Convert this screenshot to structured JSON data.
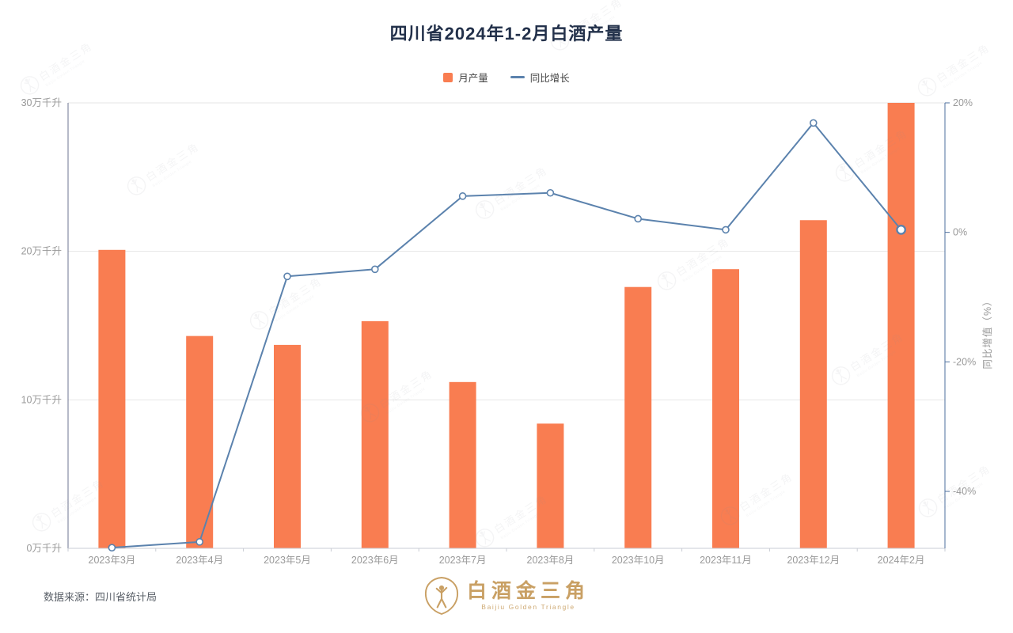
{
  "chart_data": {
    "type": "bar",
    "combo": "bar-line-dual-axis",
    "title": "四川省2024年1-2月白酒产量",
    "categories": [
      "2023年3月",
      "2023年4月",
      "2023年5月",
      "2023年6月",
      "2023年7月",
      "2023年8月",
      "2023年10月",
      "2023年11月",
      "2023年12月",
      "2024年2月"
    ],
    "series": [
      {
        "name": "月产量",
        "type": "bar",
        "axis": "left",
        "unit": "万千升",
        "color": "#f97d51",
        "values": [
          20.1,
          14.3,
          13.7,
          15.3,
          11.2,
          8.4,
          17.6,
          18.8,
          22.1,
          30.0
        ]
      },
      {
        "name": "同比增长",
        "type": "line",
        "axis": "right",
        "unit": "%",
        "color": "#5b82ad",
        "values": [
          -48.7,
          -47.8,
          -6.8,
          -5.7,
          5.6,
          6.1,
          2.1,
          0.4,
          16.9,
          0.4
        ]
      }
    ],
    "left_axis": {
      "min": 0,
      "max": 30,
      "ticks": [
        0,
        10,
        20,
        30
      ],
      "tick_labels": [
        "0万千升",
        "10万千升",
        "20万千升",
        "30万千升"
      ]
    },
    "right_axis": {
      "min": -48.8,
      "max": 20,
      "ticks": [
        20,
        0,
        -20,
        -40
      ],
      "tick_labels": [
        "20%",
        "0%",
        "-20%",
        "-40%"
      ],
      "name": "同比增值（%）"
    },
    "legend_position": "top-center",
    "grid": true
  },
  "footer": {
    "source": "数据来源：四川省统计局",
    "brand_name": "白酒金三角",
    "brand_name_en": "Baijiu Golden Triangle"
  },
  "watermark": {
    "text": "白酒金三角",
    "subtext": "Baijiu Golden Triangle"
  },
  "colors": {
    "background": "#ffffff",
    "title": "#22304a",
    "axis_label": "#999999",
    "legend_text": "#454545",
    "grid_line": "#e6e6e6",
    "left_axis_line": "#6e7590",
    "right_axis_line": "#4e6f9d",
    "x_axis_line": "#c9ccd4",
    "source_text": "#5a6068",
    "brand_gold": "#c9a064",
    "watermark_gray": "#8a8f99"
  }
}
